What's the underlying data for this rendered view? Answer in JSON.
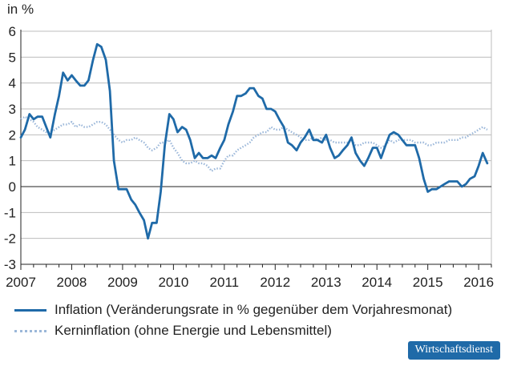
{
  "chart_data": {
    "type": "line",
    "ylabel": "in %",
    "ylim": [
      -3,
      6
    ],
    "yticks": [
      "6",
      "5",
      "4",
      "3",
      "2",
      "1",
      "0",
      "-1",
      "-2",
      "-3"
    ],
    "xlim": [
      2007.0,
      2016.25
    ],
    "xticks": [
      "2007",
      "2008",
      "2009",
      "2010",
      "2011",
      "2012",
      "2013",
      "2014",
      "2015",
      "2016"
    ],
    "grid": "horizontal",
    "legend_placement": "bottom",
    "series": [
      {
        "name": "Inflation (Veränderungsrate in % gegenüber dem Vorjahresmonat)",
        "color": "#1f6aa8",
        "style": "solid",
        "x": [
          2007.0,
          2007.08,
          2007.17,
          2007.25,
          2007.33,
          2007.42,
          2007.5,
          2007.58,
          2007.67,
          2007.75,
          2007.83,
          2007.92,
          2008.0,
          2008.08,
          2008.17,
          2008.25,
          2008.33,
          2008.42,
          2008.5,
          2008.58,
          2008.67,
          2008.75,
          2008.83,
          2008.92,
          2009.0,
          2009.08,
          2009.17,
          2009.25,
          2009.33,
          2009.42,
          2009.5,
          2009.58,
          2009.67,
          2009.75,
          2009.83,
          2009.92,
          2010.0,
          2010.08,
          2010.17,
          2010.25,
          2010.33,
          2010.42,
          2010.5,
          2010.58,
          2010.67,
          2010.75,
          2010.83,
          2010.92,
          2011.0,
          2011.08,
          2011.17,
          2011.25,
          2011.33,
          2011.42,
          2011.5,
          2011.58,
          2011.67,
          2011.75,
          2011.83,
          2011.92,
          2012.0,
          2012.08,
          2012.17,
          2012.25,
          2012.33,
          2012.42,
          2012.5,
          2012.58,
          2012.67,
          2012.75,
          2012.83,
          2012.92,
          2013.0,
          2013.08,
          2013.17,
          2013.25,
          2013.33,
          2013.42,
          2013.5,
          2013.58,
          2013.67,
          2013.75,
          2013.83,
          2013.92,
          2014.0,
          2014.08,
          2014.17,
          2014.25,
          2014.33,
          2014.42,
          2014.5,
          2014.58,
          2014.67,
          2014.75,
          2014.83,
          2014.92,
          2015.0,
          2015.08,
          2015.17,
          2015.25,
          2015.33,
          2015.42,
          2015.5,
          2015.58,
          2015.67,
          2015.75,
          2015.83,
          2015.92,
          2016.0,
          2016.08,
          2016.17
        ],
        "y": [
          1.9,
          2.2,
          2.8,
          2.6,
          2.7,
          2.7,
          2.3,
          1.9,
          2.8,
          3.5,
          4.4,
          4.1,
          4.3,
          4.1,
          3.9,
          3.9,
          4.1,
          4.9,
          5.5,
          5.4,
          4.9,
          3.7,
          1.0,
          -0.1,
          -0.1,
          -0.1,
          -0.5,
          -0.7,
          -1.0,
          -1.3,
          -2.0,
          -1.4,
          -1.4,
          -0.2,
          1.6,
          2.8,
          2.6,
          2.1,
          2.3,
          2.2,
          1.8,
          1.1,
          1.3,
          1.1,
          1.1,
          1.2,
          1.1,
          1.5,
          1.8,
          2.4,
          2.9,
          3.5,
          3.5,
          3.6,
          3.8,
          3.8,
          3.5,
          3.4,
          3.0,
          3.0,
          2.9,
          2.6,
          2.3,
          1.7,
          1.6,
          1.4,
          1.7,
          1.9,
          2.2,
          1.8,
          1.8,
          1.7,
          2.0,
          1.5,
          1.1,
          1.2,
          1.4,
          1.6,
          1.9,
          1.3,
          1.0,
          0.8,
          1.1,
          1.5,
          1.5,
          1.1,
          1.6,
          2.0,
          2.1,
          2.0,
          1.8,
          1.6,
          1.6,
          1.6,
          1.1,
          0.3,
          -0.2,
          -0.1,
          -0.1,
          0.0,
          0.1,
          0.2,
          0.2,
          0.2,
          0.0,
          0.1,
          0.3,
          0.4,
          0.8,
          1.3,
          0.9
        ]
      },
      {
        "name": "Kerninflation (ohne Energie und Lebensmittel)",
        "color": "#9bb7d9",
        "style": "dotted",
        "x": [
          2007.0,
          2007.08,
          2007.17,
          2007.25,
          2007.33,
          2007.42,
          2007.5,
          2007.58,
          2007.67,
          2007.75,
          2007.83,
          2007.92,
          2008.0,
          2008.08,
          2008.17,
          2008.25,
          2008.33,
          2008.42,
          2008.5,
          2008.58,
          2008.67,
          2008.75,
          2008.83,
          2008.92,
          2009.0,
          2009.08,
          2009.17,
          2009.25,
          2009.33,
          2009.42,
          2009.5,
          2009.58,
          2009.67,
          2009.75,
          2009.83,
          2009.92,
          2010.0,
          2010.08,
          2010.17,
          2010.25,
          2010.33,
          2010.42,
          2010.5,
          2010.58,
          2010.67,
          2010.75,
          2010.83,
          2010.92,
          2011.0,
          2011.08,
          2011.17,
          2011.25,
          2011.33,
          2011.42,
          2011.5,
          2011.58,
          2011.67,
          2011.75,
          2011.83,
          2011.92,
          2012.0,
          2012.08,
          2012.17,
          2012.25,
          2012.33,
          2012.42,
          2012.5,
          2012.58,
          2012.67,
          2012.75,
          2012.83,
          2012.92,
          2013.0,
          2013.08,
          2013.17,
          2013.25,
          2013.33,
          2013.42,
          2013.5,
          2013.58,
          2013.67,
          2013.75,
          2013.83,
          2013.92,
          2014.0,
          2014.08,
          2014.17,
          2014.25,
          2014.33,
          2014.42,
          2014.5,
          2014.58,
          2014.67,
          2014.75,
          2014.83,
          2014.92,
          2015.0,
          2015.08,
          2015.17,
          2015.25,
          2015.33,
          2015.42,
          2015.5,
          2015.58,
          2015.67,
          2015.75,
          2015.83,
          2015.92,
          2016.0,
          2016.08,
          2016.17
        ],
        "y": [
          2.6,
          2.7,
          2.6,
          2.5,
          2.3,
          2.2,
          2.1,
          2.1,
          2.2,
          2.3,
          2.4,
          2.4,
          2.5,
          2.3,
          2.4,
          2.3,
          2.3,
          2.4,
          2.5,
          2.5,
          2.4,
          2.2,
          2.0,
          1.8,
          1.7,
          1.8,
          1.8,
          1.9,
          1.8,
          1.7,
          1.5,
          1.4,
          1.5,
          1.7,
          1.7,
          1.8,
          1.5,
          1.3,
          1.0,
          0.9,
          0.9,
          1.0,
          0.9,
          0.9,
          0.8,
          0.6,
          0.7,
          0.7,
          1.0,
          1.2,
          1.2,
          1.4,
          1.5,
          1.6,
          1.7,
          1.9,
          2.0,
          2.1,
          2.1,
          2.3,
          2.2,
          2.2,
          2.3,
          2.2,
          2.1,
          2.0,
          1.9,
          1.8,
          1.8,
          1.9,
          1.8,
          1.9,
          1.8,
          1.8,
          1.7,
          1.7,
          1.7,
          1.7,
          1.8,
          1.6,
          1.6,
          1.7,
          1.7,
          1.7,
          1.6,
          1.5,
          1.6,
          1.8,
          1.7,
          1.8,
          1.8,
          1.8,
          1.8,
          1.7,
          1.7,
          1.7,
          1.6,
          1.6,
          1.7,
          1.7,
          1.7,
          1.8,
          1.8,
          1.8,
          1.9,
          1.9,
          2.0,
          2.1,
          2.2,
          2.3,
          2.2
        ]
      }
    ]
  },
  "badge": {
    "label": "Wirtschaftsdienst"
  }
}
